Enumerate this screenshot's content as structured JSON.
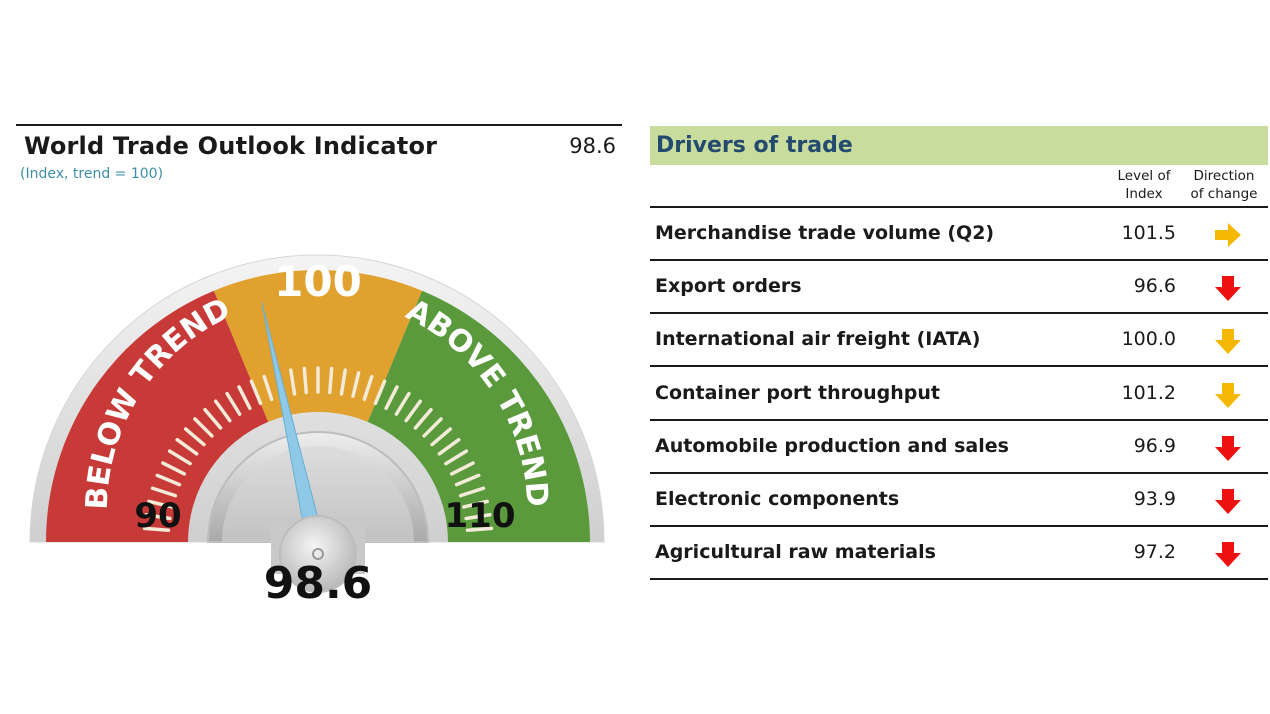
{
  "indicator": {
    "title": "World Trade Outlook Indicator",
    "subtitle": "(Index, trend = 100)",
    "value_text": "98.6"
  },
  "chart_data": {
    "type": "gauge",
    "value": 98.6,
    "value_label": "98.6",
    "min": 90,
    "max": 110,
    "min_label": "90",
    "max_label": "110",
    "center_label": "100",
    "bands": [
      {
        "label": "BELOW TREND",
        "from": 90,
        "to": 97.5,
        "color": "#c83a37"
      },
      {
        "label": "",
        "from": 97.5,
        "to": 102.5,
        "color": "#e0a12f"
      },
      {
        "label": "ABOVE TREND",
        "from": 102.5,
        "to": 110,
        "color": "#5a9a3c"
      }
    ],
    "needle_color": "#8ec9e8"
  },
  "drivers": {
    "title": "Drivers of trade",
    "columns": {
      "level": "Level of Index",
      "direction": "Direction of change"
    },
    "rows": [
      {
        "label": "Merchandise trade volume (Q2)",
        "value": "101.5",
        "direction": "right",
        "color": "#f5b800"
      },
      {
        "label": "Export orders",
        "value": "96.6",
        "direction": "down",
        "color": "#ee1111"
      },
      {
        "label": "International air freight (IATA)",
        "value": "100.0",
        "direction": "down",
        "color": "#f5b800"
      },
      {
        "label": "Container port throughput",
        "value": "101.2",
        "direction": "down",
        "color": "#f5b800"
      },
      {
        "label": "Automobile production and sales",
        "value": "96.9",
        "direction": "down",
        "color": "#ee1111"
      },
      {
        "label": "Electronic components",
        "value": "93.9",
        "direction": "down",
        "color": "#ee1111"
      },
      {
        "label": "Agricultural raw materials",
        "value": "97.2",
        "direction": "down",
        "color": "#ee1111"
      }
    ]
  }
}
